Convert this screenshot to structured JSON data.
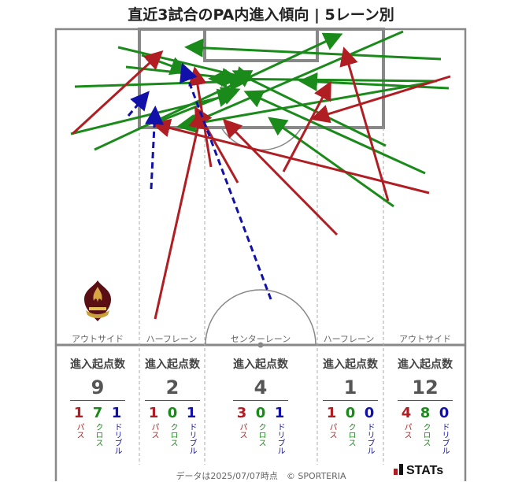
{
  "title": "直近3試合のPA内進入傾向 | 5レーン別",
  "colors": {
    "pass": "#b01e23",
    "cross": "#1a8a1a",
    "dribble": "#1111aa",
    "line": "#888888"
  },
  "lanes": [
    {
      "label": "アウトサイド",
      "stat_title": "進入起点数",
      "total": "9",
      "pass": "1",
      "cross": "7",
      "dribble": "1"
    },
    {
      "label": "ハーフレーン",
      "stat_title": "進入起点数",
      "total": "2",
      "pass": "1",
      "cross": "0",
      "dribble": "1"
    },
    {
      "label": "センターレーン",
      "stat_title": "進入起点数",
      "total": "4",
      "pass": "3",
      "cross": "0",
      "dribble": "1"
    },
    {
      "label": "ハーフレーン",
      "stat_title": "進入起点数",
      "total": "1",
      "pass": "1",
      "cross": "0",
      "dribble": "0"
    },
    {
      "label": "アウトサイド",
      "stat_title": "進入起点数",
      "total": "12",
      "pass": "4",
      "cross": "8",
      "dribble": "0"
    }
  ],
  "type_labels": {
    "pass": "パス",
    "cross": "クロス",
    "dribble": "ドリブル"
  },
  "footer": "データは2025/07/07時点　© SPORTERIA",
  "brand": "STATs",
  "logo_icon": "fleur-de-lis-crest-icon"
}
